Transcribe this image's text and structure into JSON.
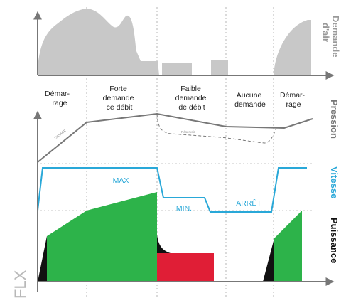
{
  "phases": {
    "p1": [
      "Démar-",
      "rage"
    ],
    "p2": [
      "Forte",
      "demande",
      "ce débit"
    ],
    "p3": [
      "Faible",
      "demande",
      "de débit"
    ],
    "p4": [
      "Aucune",
      "demande"
    ],
    "p5": [
      "Démar-",
      "rage"
    ]
  },
  "side_labels": {
    "air_demand": [
      "Demande",
      "d'air"
    ],
    "pressure": "Pression",
    "speed": "Vitesse",
    "power": "Puissance"
  },
  "speed_labels": {
    "max": "MAX",
    "min": "MIN.",
    "stop": "ARRÊT"
  },
  "tiny_labels": {
    "left_line": "LISSAGE",
    "dashed": "Réservoir"
  },
  "logo": "FLX",
  "colors": {
    "air_demand_fill": "#c8c8c8",
    "pressure_line": "#777777",
    "speed_line": "#29a8d8",
    "power_fill": "#2db34a",
    "low_flow_fill": "#e01e36",
    "startup_fill": "#111111",
    "axis": "#777777",
    "grid": "#b5b5b5"
  }
}
